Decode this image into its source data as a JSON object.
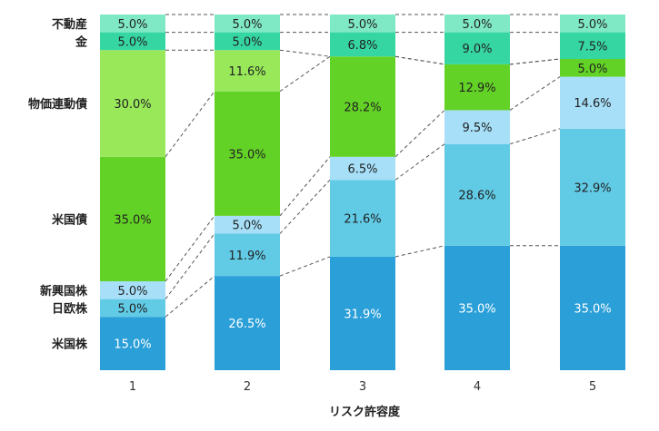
{
  "chart_data": {
    "type": "bar",
    "stacked": true,
    "normalized": true,
    "xlabel": "リスク許容度",
    "ylabel": "",
    "title": "",
    "categories": [
      "1",
      "2",
      "3",
      "4",
      "5"
    ],
    "ylim": [
      0,
      100
    ],
    "connectors": true,
    "series": [
      {
        "name": "米国株",
        "color": "#2a9fd8",
        "text_color": "#ffffff",
        "values": [
          15.0,
          26.5,
          31.9,
          35.0,
          35.0
        ],
        "labels": [
          "15.0%",
          "26.5%",
          "31.9%",
          "35.0%",
          "35.0%"
        ]
      },
      {
        "name": "日欧株",
        "color": "#61cbe6",
        "text_color": "#222222",
        "values": [
          5.0,
          11.9,
          21.6,
          28.6,
          32.9
        ],
        "labels": [
          "5.0%",
          "11.9%",
          "21.6%",
          "28.6%",
          "32.9%"
        ]
      },
      {
        "name": "新興国株",
        "color": "#a6dff7",
        "text_color": "#222222",
        "values": [
          5.0,
          5.0,
          6.5,
          9.5,
          14.6
        ],
        "labels": [
          "5.0%",
          "5.0%",
          "6.5%",
          "9.5%",
          "14.6%"
        ]
      },
      {
        "name": "米国債",
        "color": "#63d226",
        "text_color": "#222222",
        "values": [
          35.0,
          35.0,
          28.2,
          12.9,
          5.0
        ],
        "labels": [
          "35.0%",
          "35.0%",
          "28.2%",
          "12.9%",
          "5.0%"
        ]
      },
      {
        "name": "物価連動債",
        "color": "#98e85a",
        "text_color": "#222222",
        "values": [
          30.0,
          11.6,
          0,
          0,
          0
        ],
        "labels": [
          "30.0%",
          "11.6%",
          "",
          "",
          ""
        ]
      },
      {
        "name": "金",
        "color": "#36d6a3",
        "text_color": "#222222",
        "values": [
          5.0,
          5.0,
          6.8,
          9.0,
          7.5
        ],
        "labels": [
          "5.0%",
          "5.0%",
          "6.8%",
          "9.0%",
          "7.5%"
        ]
      },
      {
        "name": "不動産",
        "color": "#7fe8c4",
        "text_color": "#222222",
        "values": [
          5.0,
          5.0,
          5.0,
          5.0,
          5.0
        ],
        "labels": [
          "5.0%",
          "5.0%",
          "5.0%",
          "5.0%",
          "5.0%"
        ]
      }
    ]
  }
}
